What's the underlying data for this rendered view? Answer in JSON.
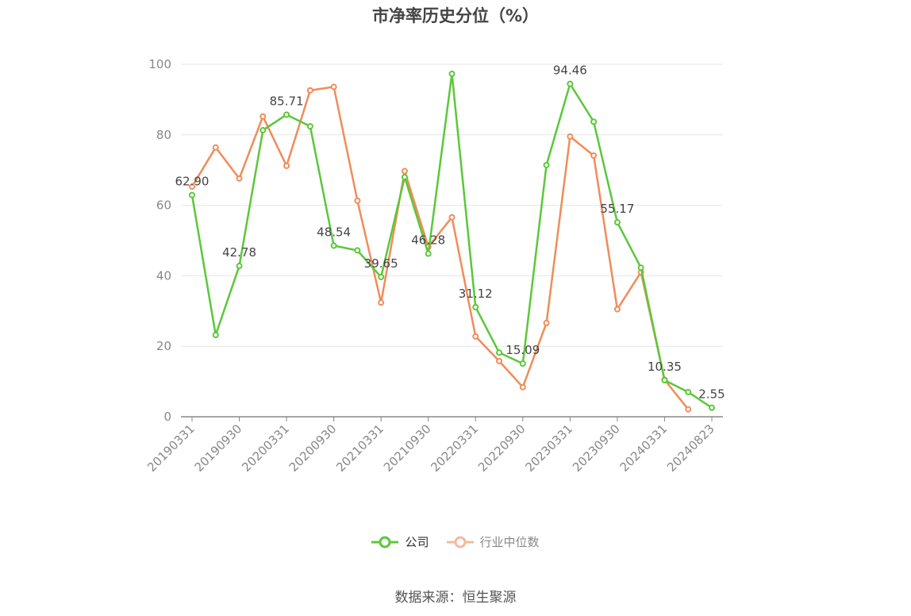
{
  "title": "市净率历史分位（%）",
  "source": "数据来源：恒生聚源",
  "legend": {
    "company_label": "公司",
    "industry_label": "行业中位数"
  },
  "colors": {
    "company": "#5ac83a",
    "industry": "#f08c5a",
    "industry_legend": "#f5b9a0",
    "grid": "#e6e6e6",
    "axis": "#888888"
  },
  "chart_data": {
    "type": "line",
    "title": "市净率历史分位（%）",
    "ylim": [
      0,
      100
    ],
    "y_ticks": [
      0,
      20,
      40,
      60,
      80,
      100
    ],
    "grid": true,
    "legend_position": "bottom",
    "x_tick_labels": [
      "20190331",
      "20190930",
      "20200331",
      "20200930",
      "20210331",
      "20210930",
      "20220331",
      "20220930",
      "20230331",
      "20230930",
      "20240331",
      "20240823"
    ],
    "n_points": 23,
    "series": [
      {
        "name": "公司",
        "values": [
          62.9,
          23.2,
          42.78,
          81.3,
          85.71,
          82.4,
          48.54,
          47.2,
          39.65,
          68.0,
          46.28,
          97.3,
          31.12,
          18.2,
          15.09,
          71.4,
          94.46,
          83.7,
          55.17,
          42.3,
          10.35,
          7.0,
          2.55
        ],
        "labels": {
          "0": "62.90",
          "2": "42.78",
          "4": "85.71",
          "6": "48.54",
          "8": "39.65",
          "10": "46.28",
          "12": "31.12",
          "14": "15.09",
          "16": "94.46",
          "18": "55.17",
          "20": "10.35",
          "22": "2.55"
        }
      },
      {
        "name": "行业中位数",
        "values": [
          65.3,
          76.4,
          67.6,
          85.2,
          71.2,
          92.6,
          93.6,
          61.3,
          32.4,
          69.7,
          48.2,
          56.6,
          22.8,
          15.8,
          8.4,
          26.6,
          79.5,
          74.1,
          30.5,
          41.0,
          10.5,
          2.1,
          null
        ]
      }
    ]
  }
}
